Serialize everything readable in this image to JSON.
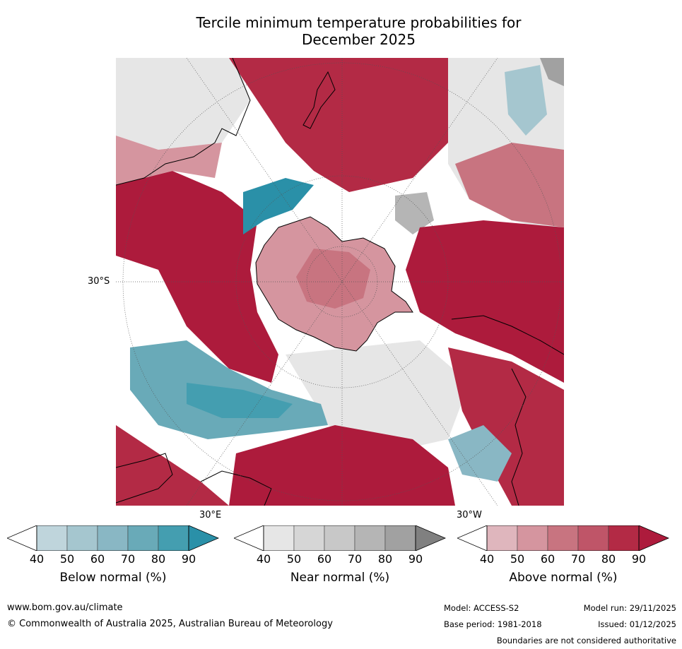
{
  "title": {
    "line1": "Tercile minimum temperature probabilities for",
    "line2": "December 2025"
  },
  "map": {
    "projection": "south-polar-stereographic",
    "lat_label": "30°S",
    "lon_labels": {
      "east": "30°E",
      "west": "30°W"
    },
    "colors": {
      "above": [
        "#dfb6bd",
        "#d5959f",
        "#c87480",
        "#bf5568",
        "#b32a45",
        "#ad1b3c"
      ],
      "near": [
        "#e6e6e6",
        "#d6d6d6",
        "#c8c8c8",
        "#b5b5b5",
        "#a1a1a1",
        "#808080"
      ],
      "below": [
        "#bfd5dc",
        "#a5c6cf",
        "#89b7c4",
        "#69aab8",
        "#449eb0",
        "#2a90a8"
      ],
      "land_outline": "#000000"
    }
  },
  "colorbars": [
    {
      "label": "Below normal (%)",
      "ticks": [
        "40",
        "50",
        "60",
        "70",
        "80",
        "90"
      ],
      "colors": [
        "#ffffff",
        "#bfd5dc",
        "#a5c6cf",
        "#89b7c4",
        "#69aab8",
        "#449eb0",
        "#2a90a8"
      ]
    },
    {
      "label": "Near normal (%)",
      "ticks": [
        "40",
        "50",
        "60",
        "70",
        "80",
        "90"
      ],
      "colors": [
        "#ffffff",
        "#e6e6e6",
        "#d6d6d6",
        "#c8c8c8",
        "#b5b5b5",
        "#a1a1a1",
        "#808080"
      ]
    },
    {
      "label": "Above normal (%)",
      "ticks": [
        "40",
        "50",
        "60",
        "70",
        "80",
        "90"
      ],
      "colors": [
        "#ffffff",
        "#dfb6bd",
        "#d5959f",
        "#c87480",
        "#bf5568",
        "#b32a45",
        "#ad1b3c"
      ]
    }
  ],
  "footer": {
    "website": "www.bom.gov.au/climate",
    "copyright": "© Commonwealth of Australia 2025, Australian Bureau of Meteorology",
    "model": "Model: ACCESS-S2",
    "base_period": "Base period: 1981-2018",
    "model_run": "Model run: 29/11/2025",
    "issued": "Issued: 01/12/2025",
    "disclaimer": "Boundaries are not considered authoritative"
  }
}
